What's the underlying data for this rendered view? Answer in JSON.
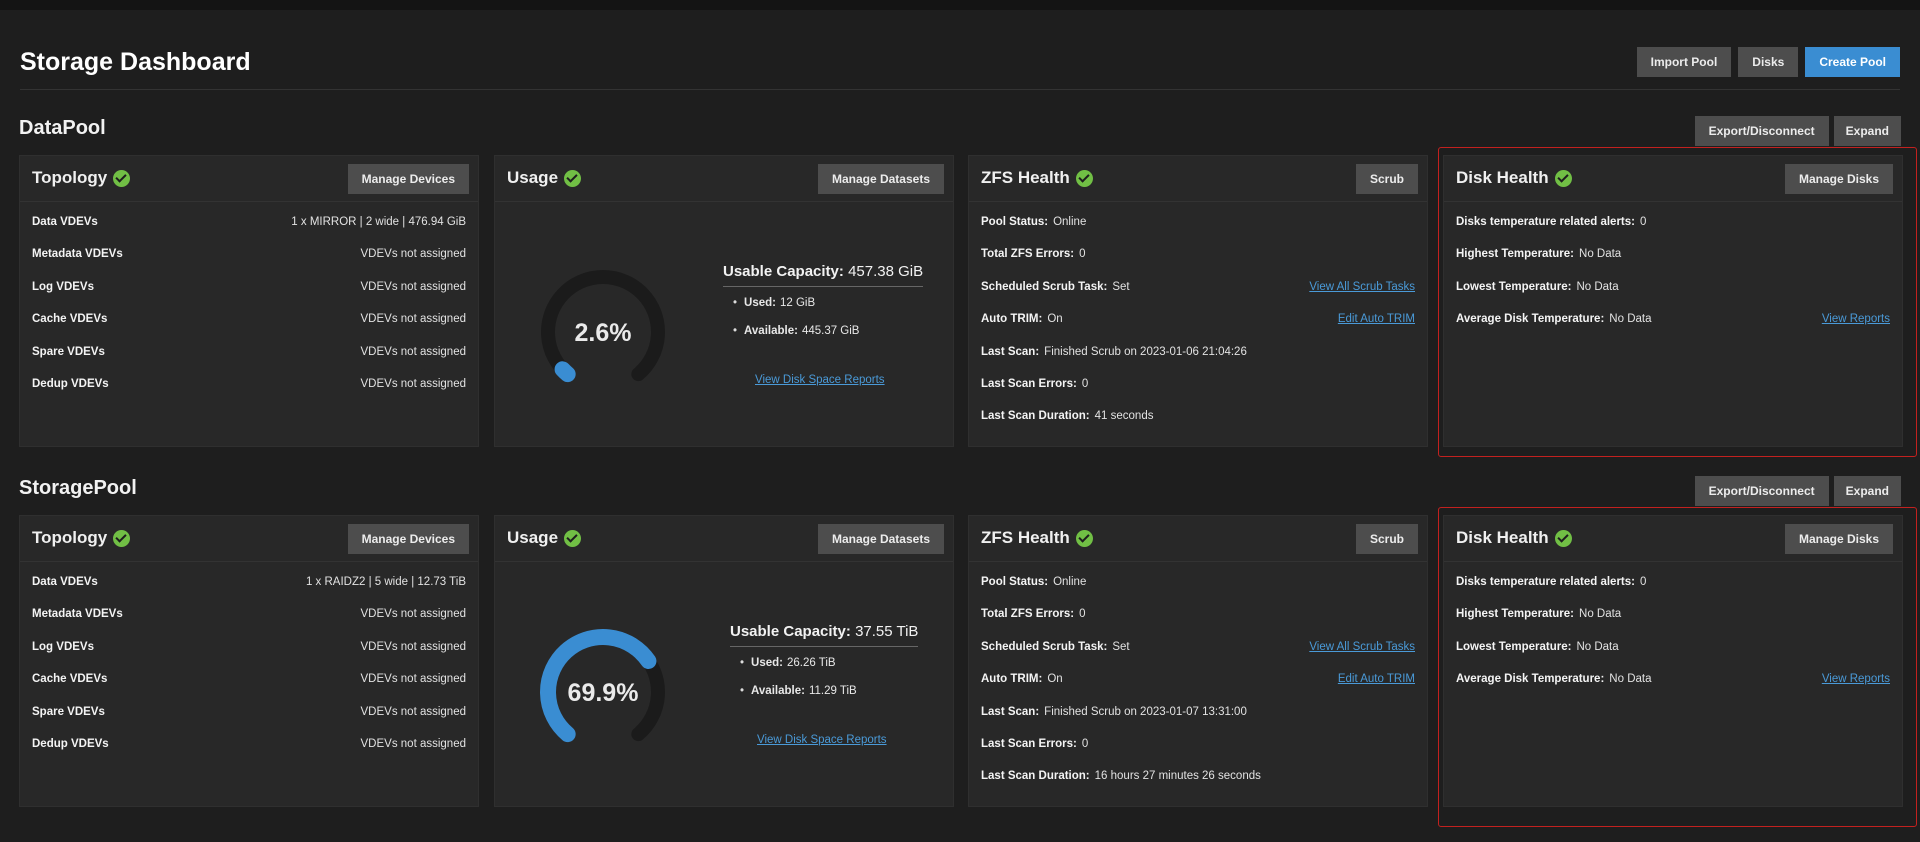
{
  "page": {
    "title": "Storage Dashboard",
    "buttons": {
      "import_pool": "Import Pool",
      "disks": "Disks",
      "create_pool": "Create Pool"
    }
  },
  "colors": {
    "accent": "#3a8dd2",
    "ok": "#71bf45",
    "gauge_track": "#1b1b1b",
    "highlight": "#c3211f"
  },
  "common": {
    "export_disconnect": "Export/Disconnect",
    "expand": "Expand",
    "topology_title": "Topology",
    "manage_devices": "Manage Devices",
    "usage_title": "Usage",
    "manage_datasets": "Manage Datasets",
    "zfs_title": "ZFS Health",
    "scrub": "Scrub",
    "disk_health_title": "Disk Health",
    "manage_disks": "Manage Disks",
    "usable_capacity_label": "Usable Capacity:",
    "used_label": "Used:",
    "available_label": "Available:",
    "view_disk_space_reports": "View Disk Space Reports",
    "view_all_scrub_tasks": "View All Scrub Tasks",
    "edit_auto_trim": "Edit Auto TRIM",
    "view_reports": "View Reports",
    "topology_labels": [
      "Data VDEVs",
      "Metadata VDEVs",
      "Log VDEVs",
      "Cache VDEVs",
      "Spare VDEVs",
      "Dedup VDEVs"
    ],
    "zfs_labels": [
      "Pool Status:",
      "Total ZFS Errors:",
      "Scheduled Scrub Task:",
      "Auto TRIM:",
      "Last Scan:",
      "Last Scan Errors:",
      "Last Scan Duration:"
    ],
    "disk_labels": [
      "Disks temperature related alerts:",
      "Highest Temperature:",
      "Lowest Temperature:",
      "Average Disk Temperature:"
    ]
  },
  "pools": [
    {
      "name": "DataPool",
      "topology": [
        "1 x MIRROR | 2 wide | 476.94 GiB",
        "VDEVs not assigned",
        "VDEVs not assigned",
        "VDEVs not assigned",
        "VDEVs not assigned",
        "VDEVs not assigned"
      ],
      "usage": {
        "percent": 2.6,
        "percent_text": "2.6%",
        "usable_capacity": "457.38 GiB",
        "used": "12 GiB",
        "available": "445.37 GiB"
      },
      "zfs": [
        "Online",
        "0",
        "Set",
        "On",
        "Finished Scrub on 2023-01-06 21:04:26",
        "0",
        "41 seconds"
      ],
      "disk": [
        "0",
        "No Data",
        "No Data",
        "No Data"
      ]
    },
    {
      "name": "StoragePool",
      "topology": [
        "1 x RAIDZ2 | 5 wide | 12.73 TiB",
        "VDEVs not assigned",
        "VDEVs not assigned",
        "VDEVs not assigned",
        "VDEVs not assigned",
        "VDEVs not assigned"
      ],
      "usage": {
        "percent": 69.9,
        "percent_text": "69.9%",
        "usable_capacity": "37.55 TiB",
        "used": "26.26 TiB",
        "available": "11.29 TiB"
      },
      "zfs": [
        "Online",
        "0",
        "Set",
        "On",
        "Finished Scrub on 2023-01-07 13:31:00",
        "0",
        "16 hours 27 minutes 26 seconds"
      ],
      "disk": [
        "0",
        "No Data",
        "No Data",
        "No Data"
      ]
    }
  ]
}
